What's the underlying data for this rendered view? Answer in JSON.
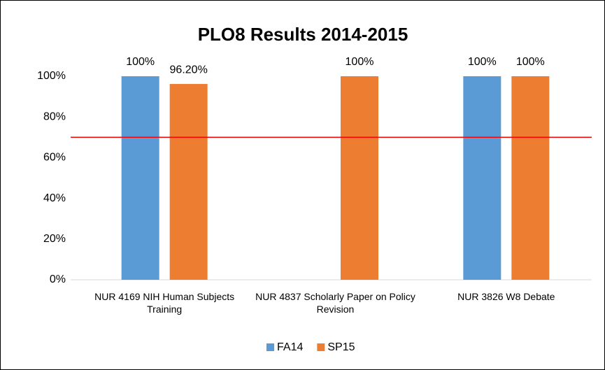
{
  "chart_data": {
    "type": "bar",
    "title": "PLO8 Results 2014-2015",
    "categories": [
      "NUR 4169 NIH Human Subjects Training",
      "NUR 4837 Scholarly Paper on Policy Revision",
      "NUR 3826 W8 Debate"
    ],
    "series": [
      {
        "name": "FA14",
        "color": "#5b9bd5",
        "values": [
          100,
          null,
          100
        ],
        "value_labels": [
          "100%",
          null,
          "100%"
        ]
      },
      {
        "name": "SP15",
        "color": "#ed7d31",
        "values": [
          96.2,
          100,
          100
        ],
        "value_labels": [
          "96.20%",
          "100%",
          "100%"
        ]
      }
    ],
    "ylim": [
      0,
      100
    ],
    "yticks": [
      {
        "value": 0,
        "label": "0%"
      },
      {
        "value": 20,
        "label": "20%"
      },
      {
        "value": 40,
        "label": "40%"
      },
      {
        "value": 60,
        "label": "60%"
      },
      {
        "value": 80,
        "label": "80%"
      },
      {
        "value": 100,
        "label": "100%"
      }
    ],
    "grid": false,
    "threshold": {
      "value": 70,
      "color": "#ff0000"
    },
    "legend": "bottom"
  }
}
